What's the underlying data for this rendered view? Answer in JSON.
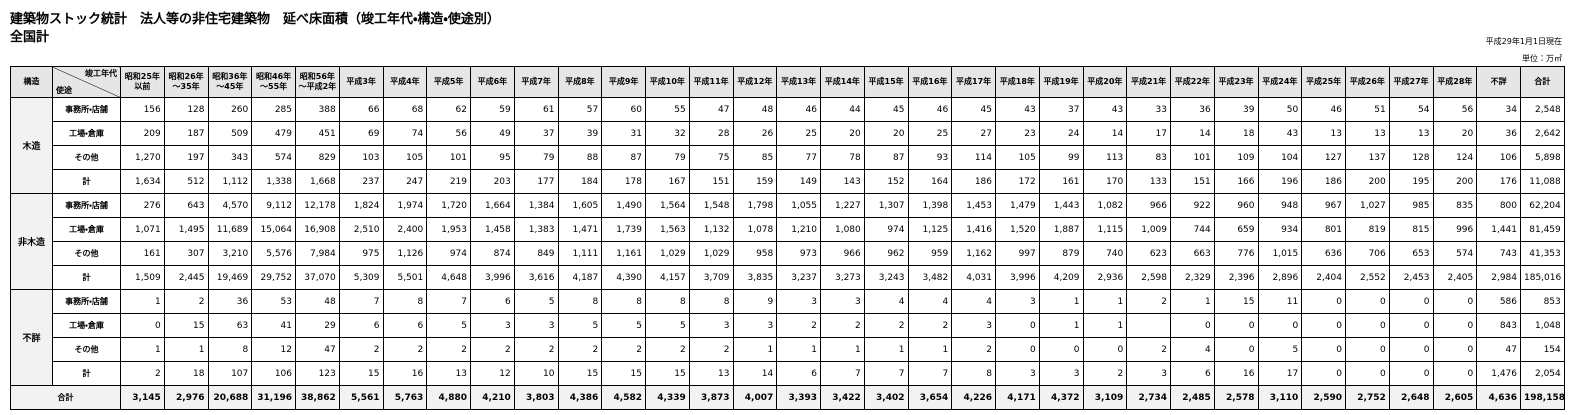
{
  "header": {
    "title": "建築物ストック統計　法人等の非住宅建築物　延べ床面積（竣工年代・構造・使途別）",
    "subtitle": "全国計",
    "as_of": "平成29年1月1日現在",
    "unit": "単位：万㎡"
  },
  "table": {
    "structure_label": "構造",
    "use_label": "使途",
    "period_label": "竣工年代",
    "columns": [
      "昭和25年\n以前",
      "昭和26年\n～35年",
      "昭和36年\n～45年",
      "昭和46年\n～55年",
      "昭和56年\n～平成2年",
      "平成3年",
      "平成4年",
      "平成5年",
      "平成6年",
      "平成7年",
      "平成8年",
      "平成9年",
      "平成10年",
      "平成11年",
      "平成12年",
      "平成13年",
      "平成14年",
      "平成15年",
      "平成16年",
      "平成17年",
      "平成18年",
      "平成19年",
      "平成20年",
      "平成21年",
      "平成22年",
      "平成23年",
      "平成24年",
      "平成25年",
      "平成26年",
      "平成27年",
      "平成28年",
      "不詳",
      "合計"
    ],
    "groups": [
      {
        "name": "木造",
        "rows": [
          {
            "label": "事務所・店舗",
            "values": [
              "156",
              "128",
              "260",
              "285",
              "388",
              "66",
              "68",
              "62",
              "59",
              "61",
              "57",
              "60",
              "55",
              "47",
              "48",
              "46",
              "44",
              "45",
              "46",
              "45",
              "43",
              "37",
              "43",
              "33",
              "36",
              "39",
              "50",
              "46",
              "51",
              "54",
              "56",
              "34",
              "2,548"
            ]
          },
          {
            "label": "工場・倉庫",
            "values": [
              "209",
              "187",
              "509",
              "479",
              "451",
              "69",
              "74",
              "56",
              "49",
              "37",
              "39",
              "31",
              "32",
              "28",
              "26",
              "25",
              "20",
              "20",
              "25",
              "27",
              "23",
              "24",
              "14",
              "17",
              "14",
              "18",
              "43",
              "13",
              "13",
              "13",
              "20",
              "36",
              "2,642"
            ]
          },
          {
            "label": "その他",
            "values": [
              "1,270",
              "197",
              "343",
              "574",
              "829",
              "103",
              "105",
              "101",
              "95",
              "79",
              "88",
              "87",
              "79",
              "75",
              "85",
              "77",
              "78",
              "87",
              "93",
              "114",
              "105",
              "99",
              "113",
              "83",
              "101",
              "109",
              "104",
              "127",
              "137",
              "128",
              "124",
              "106",
              "5,898"
            ]
          },
          {
            "label": "計",
            "values": [
              "1,634",
              "512",
              "1,112",
              "1,338",
              "1,668",
              "237",
              "247",
              "219",
              "203",
              "177",
              "184",
              "178",
              "167",
              "151",
              "159",
              "149",
              "143",
              "152",
              "164",
              "186",
              "172",
              "161",
              "170",
              "133",
              "151",
              "166",
              "196",
              "186",
              "200",
              "195",
              "200",
              "176",
              "11,088"
            ]
          }
        ]
      },
      {
        "name": "非木造",
        "rows": [
          {
            "label": "事務所・店舗",
            "values": [
              "276",
              "643",
              "4,570",
              "9,112",
              "12,178",
              "1,824",
              "1,974",
              "1,720",
              "1,664",
              "1,384",
              "1,605",
              "1,490",
              "1,564",
              "1,548",
              "1,798",
              "1,055",
              "1,227",
              "1,307",
              "1,398",
              "1,453",
              "1,479",
              "1,443",
              "1,082",
              "966",
              "922",
              "960",
              "948",
              "967",
              "1,027",
              "985",
              "835",
              "800",
              "62,204"
            ]
          },
          {
            "label": "工場・倉庫",
            "values": [
              "1,071",
              "1,495",
              "11,689",
              "15,064",
              "16,908",
              "2,510",
              "2,400",
              "1,953",
              "1,458",
              "1,383",
              "1,471",
              "1,739",
              "1,563",
              "1,132",
              "1,078",
              "1,210",
              "1,080",
              "974",
              "1,125",
              "1,416",
              "1,520",
              "1,887",
              "1,115",
              "1,009",
              "744",
              "659",
              "934",
              "801",
              "819",
              "815",
              "996",
              "1,441",
              "81,459"
            ]
          },
          {
            "label": "その他",
            "values": [
              "161",
              "307",
              "3,210",
              "5,576",
              "7,984",
              "975",
              "1,126",
              "974",
              "874",
              "849",
              "1,111",
              "1,161",
              "1,029",
              "1,029",
              "958",
              "973",
              "966",
              "962",
              "959",
              "1,162",
              "997",
              "879",
              "740",
              "623",
              "663",
              "776",
              "1,015",
              "636",
              "706",
              "653",
              "574",
              "743",
              "41,353"
            ]
          },
          {
            "label": "計",
            "values": [
              "1,509",
              "2,445",
              "19,469",
              "29,752",
              "37,070",
              "5,309",
              "5,501",
              "4,648",
              "3,996",
              "3,616",
              "4,187",
              "4,390",
              "4,157",
              "3,709",
              "3,835",
              "3,237",
              "3,273",
              "3,243",
              "3,482",
              "4,031",
              "3,996",
              "4,209",
              "2,936",
              "2,598",
              "2,329",
              "2,396",
              "2,896",
              "2,404",
              "2,552",
              "2,453",
              "2,405",
              "2,984",
              "185,016"
            ]
          }
        ]
      },
      {
        "name": "不詳",
        "rows": [
          {
            "label": "事務所・店舗",
            "values": [
              "1",
              "2",
              "36",
              "53",
              "48",
              "7",
              "8",
              "7",
              "6",
              "5",
              "8",
              "8",
              "8",
              "8",
              "9",
              "3",
              "3",
              "4",
              "4",
              "4",
              "3",
              "1",
              "1",
              "2",
              "1",
              "15",
              "11",
              "0",
              "0",
              "0",
              "0",
              "586",
              "853"
            ]
          },
          {
            "label": "工場・倉庫",
            "values": [
              "0",
              "15",
              "63",
              "41",
              "29",
              "6",
              "6",
              "5",
              "3",
              "3",
              "5",
              "5",
              "5",
              "3",
              "3",
              "2",
              "2",
              "2",
              "2",
              "3",
              "0",
              "1",
              "1",
              null,
              "0",
              "0",
              "0",
              "0",
              "0",
              "0",
              "0",
              "843",
              "1,048"
            ]
          },
          {
            "label": "その他",
            "values": [
              "1",
              "1",
              "8",
              "12",
              "47",
              "2",
              "2",
              "2",
              "2",
              "2",
              "2",
              "2",
              "2",
              "2",
              "1",
              "1",
              "1",
              "1",
              "1",
              "2",
              "0",
              "0",
              "0",
              "2",
              "4",
              "0",
              "5",
              "0",
              "0",
              "0",
              "0",
              "47",
              "154"
            ]
          },
          {
            "label": "計",
            "values": [
              "2",
              "18",
              "107",
              "106",
              "123",
              "15",
              "16",
              "13",
              "12",
              "10",
              "15",
              "15",
              "15",
              "13",
              "14",
              "6",
              "7",
              "7",
              "7",
              "8",
              "3",
              "3",
              "2",
              "3",
              "6",
              "16",
              "17",
              "0",
              "0",
              "0",
              "0",
              "1,476",
              "2,054"
            ]
          }
        ]
      }
    ],
    "total": {
      "label": "合計",
      "values": [
        "3,145",
        "2,976",
        "20,688",
        "31,196",
        "38,862",
        "5,561",
        "5,763",
        "4,880",
        "4,210",
        "3,803",
        "4,386",
        "4,582",
        "4,339",
        "3,873",
        "4,007",
        "3,393",
        "3,422",
        "3,402",
        "3,654",
        "4,226",
        "4,171",
        "4,372",
        "3,109",
        "2,734",
        "2,485",
        "2,578",
        "3,110",
        "2,590",
        "2,752",
        "2,648",
        "2,605",
        "4,636",
        "198,158"
      ]
    }
  }
}
